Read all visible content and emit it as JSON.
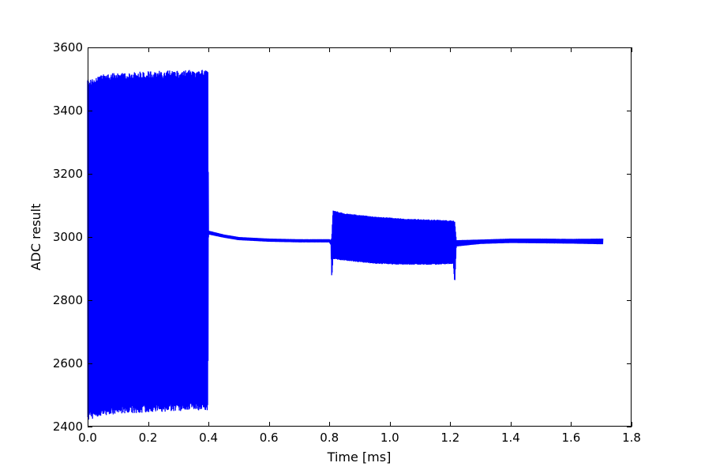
{
  "chart_data": {
    "type": "line",
    "title": "",
    "xlabel": "Time [ms]",
    "ylabel": "ADC result",
    "xlim": [
      0.0,
      1.8
    ],
    "ylim": [
      2400,
      3600
    ],
    "xticks": [
      0.0,
      0.2,
      0.4,
      0.6,
      0.8,
      1.0,
      1.2,
      1.4,
      1.6,
      1.8
    ],
    "xtick_labels": [
      "0.0",
      "0.2",
      "0.4",
      "0.6",
      "0.8",
      "1.0",
      "1.2",
      "1.4",
      "1.6",
      "1.8"
    ],
    "yticks": [
      2400,
      2600,
      2800,
      3000,
      3200,
      3400,
      3600
    ],
    "ytick_labels": [
      "2400",
      "2600",
      "2800",
      "3000",
      "3200",
      "3400",
      "3600"
    ],
    "grid": false,
    "series_color": "#0000ff",
    "series": [
      {
        "envelope": [
          {
            "x": 0.0,
            "min": 2420,
            "max": 3500
          },
          {
            "x": 0.05,
            "min": 2435,
            "max": 3515
          },
          {
            "x": 0.1,
            "min": 2440,
            "max": 3520
          },
          {
            "x": 0.2,
            "min": 2445,
            "max": 3525
          },
          {
            "x": 0.3,
            "min": 2448,
            "max": 3528
          },
          {
            "x": 0.398,
            "min": 2452,
            "max": 3530
          },
          {
            "x": 0.4,
            "min": 3008,
            "max": 3020
          },
          {
            "x": 0.45,
            "min": 2998,
            "max": 3008
          },
          {
            "x": 0.5,
            "min": 2990,
            "max": 3000
          },
          {
            "x": 0.6,
            "min": 2985,
            "max": 2995
          },
          {
            "x": 0.7,
            "min": 2983,
            "max": 2993
          },
          {
            "x": 0.8,
            "min": 2983,
            "max": 2993
          },
          {
            "x": 0.805,
            "min": 2975,
            "max": 2990
          },
          {
            "x": 0.808,
            "min": 2870,
            "max": 3000
          },
          {
            "x": 0.812,
            "min": 2930,
            "max": 3085
          },
          {
            "x": 0.85,
            "min": 2925,
            "max": 3075
          },
          {
            "x": 0.95,
            "min": 2915,
            "max": 3065
          },
          {
            "x": 1.05,
            "min": 2912,
            "max": 3058
          },
          {
            "x": 1.15,
            "min": 2912,
            "max": 3055
          },
          {
            "x": 1.21,
            "min": 2915,
            "max": 3052
          },
          {
            "x": 1.215,
            "min": 2850,
            "max": 3050
          },
          {
            "x": 1.22,
            "min": 2970,
            "max": 2990
          },
          {
            "x": 1.3,
            "min": 2978,
            "max": 2992
          },
          {
            "x": 1.4,
            "min": 2981,
            "max": 2995
          },
          {
            "x": 1.5,
            "min": 2980,
            "max": 2995
          },
          {
            "x": 1.6,
            "min": 2979,
            "max": 2994
          },
          {
            "x": 1.705,
            "min": 2977,
            "max": 2995
          }
        ]
      }
    ]
  }
}
